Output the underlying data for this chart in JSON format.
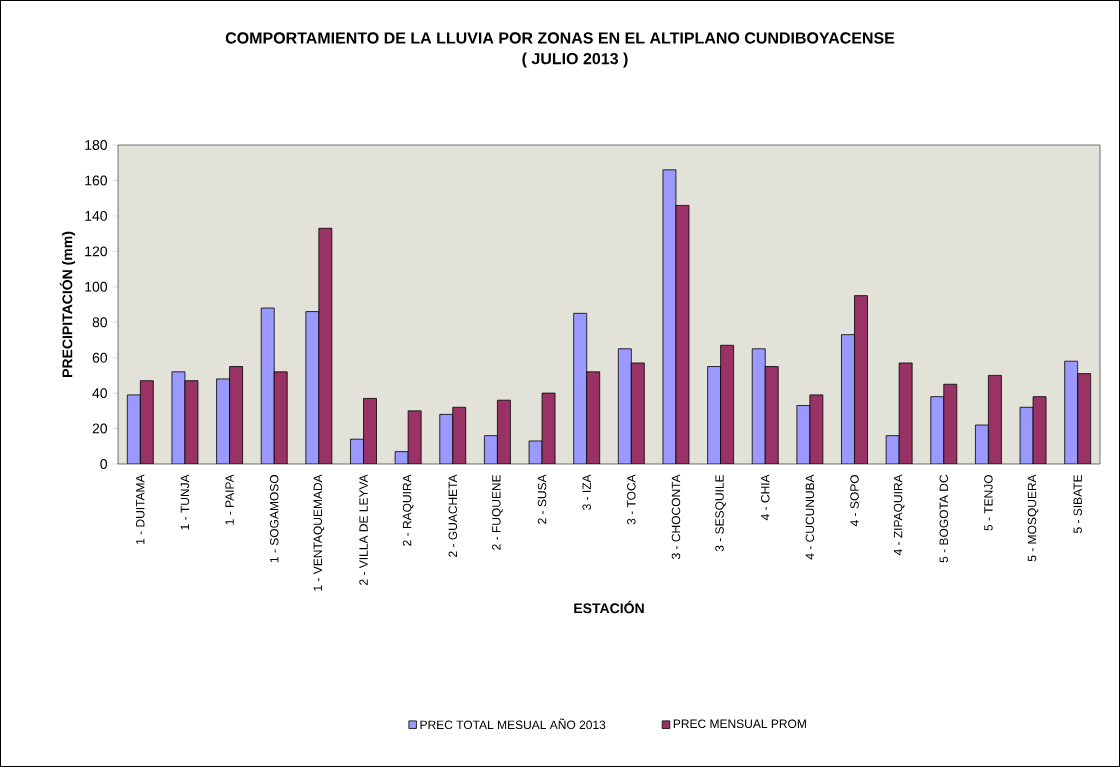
{
  "chart_data": {
    "type": "bar",
    "title": "COMPORTAMIENTO DE LA LLUVIA POR ZONAS EN EL ALTIPLANO CUNDIBOYACENSE",
    "subtitle": "( JULIO 2013 )",
    "xlabel": "ESTACIÓN",
    "ylabel": "PRECIPITACIÓN (mm)",
    "categories": [
      "1 - DUITAMA",
      "1 - TUNJA",
      "1 - PAIPA",
      "1 - SOGAMOSO",
      "1 - VENTAQUEMADA",
      "2 - VILLA DE LEYVA",
      "2 - RAQUIRA",
      "2 - GUACHETA",
      "2 - FUQUENE",
      "2 - SUSA",
      "3 - IZA",
      "3 - TOCA",
      "3 - CHOCONTA",
      "3 - SESQUILE",
      "4 - CHIA",
      "4 - CUCUNUBA",
      "4 - SOPO",
      "4 - ZIPAQUIRA",
      "5 - BOGOTA DC",
      "5 - TENJO",
      "5 - MOSQUERA",
      "5 - SIBATE"
    ],
    "series": [
      {
        "name": "PREC TOTAL MESUAL AÑO 2013",
        "color": "#9999ff",
        "values": [
          39,
          52,
          48,
          88,
          86,
          14,
          7,
          28,
          16,
          13,
          85,
          65,
          166,
          55,
          65,
          33,
          73,
          16,
          38,
          22,
          32,
          58
        ]
      },
      {
        "name": "PREC MENSUAL PROM",
        "color": "#993366",
        "values": [
          47,
          47,
          55,
          52,
          133,
          37,
          30,
          32,
          36,
          40,
          52,
          57,
          146,
          67,
          55,
          39,
          95,
          57,
          45,
          50,
          38,
          51
        ]
      }
    ],
    "ylim": [
      0,
      180
    ],
    "yticks": [
      0,
      20,
      40,
      60,
      80,
      100,
      120,
      140,
      160,
      180
    ],
    "grid": false,
    "legend": "bottom"
  }
}
